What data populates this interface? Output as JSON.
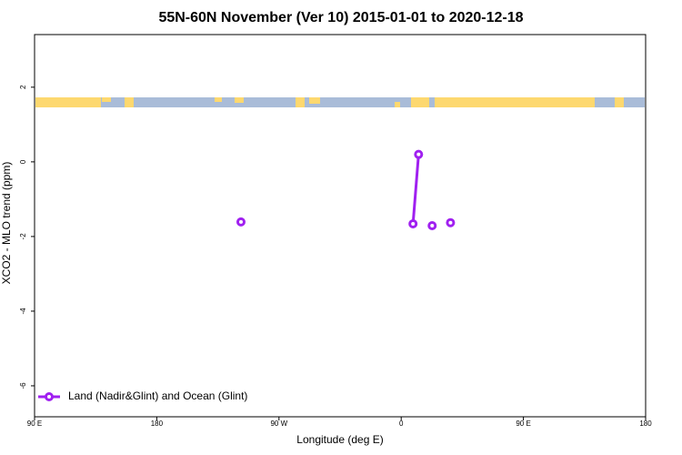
{
  "chart_data": {
    "type": "line",
    "title": "55N-60N November (Ver 10)   2015-01-01 to 2020-12-18",
    "x_label": "Longitude (deg E)",
    "y_label": "XCO2 - MLO trend (ppm)",
    "xlim": [
      -270,
      180
    ],
    "xticks": [
      {
        "value": -270,
        "label": "90 E"
      },
      {
        "value": -180,
        "label": "180"
      },
      {
        "value": -90,
        "label": "90 W"
      },
      0,
      {
        "value": 90,
        "label": "90 E"
      },
      180
    ],
    "ylim": [
      -6.83,
      3.41
    ],
    "yticks": [
      -6,
      -4,
      -2,
      0,
      2
    ],
    "legend": "bottom left",
    "series": [
      {
        "name": "Land (Nadir&Glint) and Ocean (Glint)",
        "color": "#a020f0",
        "x": [
          -118,
          null,
          8.7,
          12.8,
          null,
          22.8,
          null,
          36.3
        ],
        "values": [
          -1.61,
          null,
          -1.66,
          0.2,
          null,
          -1.71,
          null,
          -1.63
        ]
      }
    ]
  }
}
